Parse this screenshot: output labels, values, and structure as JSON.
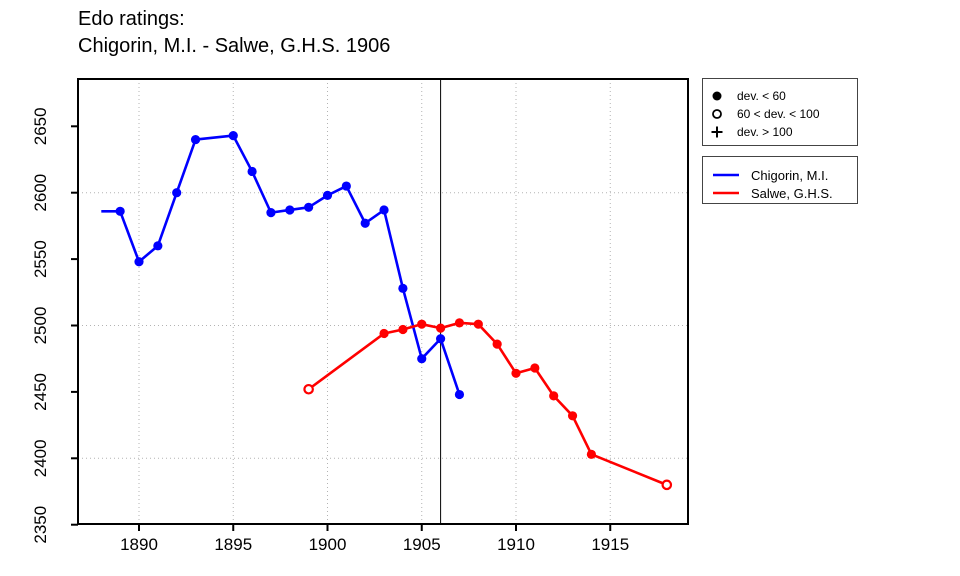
{
  "title": {
    "line1": "Edo ratings:",
    "line2": "Chigorin, M.I. - Salwe, G.H.S. 1906"
  },
  "symbol_legend": {
    "items": [
      {
        "symbol": "filled-circle",
        "label": "dev. < 60"
      },
      {
        "symbol": "open-circle",
        "label": "60 < dev. < 100"
      },
      {
        "symbol": "plus",
        "label": "dev. > 100"
      }
    ]
  },
  "series_legend": {
    "items": [
      {
        "color": "#0000ff",
        "label": "Chigorin, M.I."
      },
      {
        "color": "#ff0000",
        "label": "Salwe, G.H.S."
      }
    ]
  },
  "chart_data": {
    "type": "line",
    "title": "Edo ratings: Chigorin, M.I. - Salwe, G.H.S. 1906",
    "xlabel": "",
    "ylabel": "",
    "x_ticks": [
      1890,
      1895,
      1900,
      1905,
      1910,
      1915
    ],
    "y_ticks": [
      2350,
      2400,
      2450,
      2500,
      2550,
      2600,
      2650
    ],
    "xlim": [
      1886.8,
      1919.1
    ],
    "ylim": [
      2350,
      2686
    ],
    "grid": {
      "vertical_at": [
        1890,
        1895,
        1900,
        1905,
        1910,
        1915
      ],
      "horizontal_at": [
        2400,
        2500,
        2600
      ],
      "style": "dotted"
    },
    "event_line_year": 1906,
    "legend_position": "outside-right",
    "marker_meaning": {
      "filled": "dev. < 60",
      "open": "60 < dev. < 100",
      "plus": "dev. > 100"
    },
    "series": [
      {
        "name": "Chigorin, M.I.",
        "color": "#0000ff",
        "points": [
          {
            "year": 1888,
            "rating": 2586,
            "marker": "none"
          },
          {
            "year": 1889,
            "rating": 2586,
            "marker": "filled"
          },
          {
            "year": 1890,
            "rating": 2548,
            "marker": "filled"
          },
          {
            "year": 1891,
            "rating": 2560,
            "marker": "filled"
          },
          {
            "year": 1892,
            "rating": 2600,
            "marker": "filled"
          },
          {
            "year": 1893,
            "rating": 2640,
            "marker": "filled"
          },
          {
            "year": 1895,
            "rating": 2643,
            "marker": "filled"
          },
          {
            "year": 1896,
            "rating": 2616,
            "marker": "filled"
          },
          {
            "year": 1897,
            "rating": 2585,
            "marker": "filled"
          },
          {
            "year": 1898,
            "rating": 2587,
            "marker": "filled"
          },
          {
            "year": 1899,
            "rating": 2589,
            "marker": "filled"
          },
          {
            "year": 1900,
            "rating": 2598,
            "marker": "filled"
          },
          {
            "year": 1901,
            "rating": 2605,
            "marker": "filled"
          },
          {
            "year": 1902,
            "rating": 2577,
            "marker": "filled"
          },
          {
            "year": 1903,
            "rating": 2587,
            "marker": "filled"
          },
          {
            "year": 1904,
            "rating": 2528,
            "marker": "filled"
          },
          {
            "year": 1905,
            "rating": 2475,
            "marker": "filled"
          },
          {
            "year": 1906,
            "rating": 2490,
            "marker": "filled"
          },
          {
            "year": 1907,
            "rating": 2448,
            "marker": "filled"
          }
        ]
      },
      {
        "name": "Salwe, G.H.S.",
        "color": "#ff0000",
        "points": [
          {
            "year": 1899,
            "rating": 2452,
            "marker": "open"
          },
          {
            "year": 1903,
            "rating": 2494,
            "marker": "filled"
          },
          {
            "year": 1904,
            "rating": 2497,
            "marker": "filled"
          },
          {
            "year": 1905,
            "rating": 2501,
            "marker": "filled"
          },
          {
            "year": 1906,
            "rating": 2498,
            "marker": "filled"
          },
          {
            "year": 1907,
            "rating": 2502,
            "marker": "filled"
          },
          {
            "year": 1908,
            "rating": 2501,
            "marker": "filled"
          },
          {
            "year": 1909,
            "rating": 2486,
            "marker": "filled"
          },
          {
            "year": 1910,
            "rating": 2464,
            "marker": "filled"
          },
          {
            "year": 1911,
            "rating": 2468,
            "marker": "filled"
          },
          {
            "year": 1912,
            "rating": 2447,
            "marker": "filled"
          },
          {
            "year": 1913,
            "rating": 2432,
            "marker": "filled"
          },
          {
            "year": 1914,
            "rating": 2403,
            "marker": "filled"
          },
          {
            "year": 1918,
            "rating": 2380,
            "marker": "open"
          }
        ]
      }
    ]
  }
}
